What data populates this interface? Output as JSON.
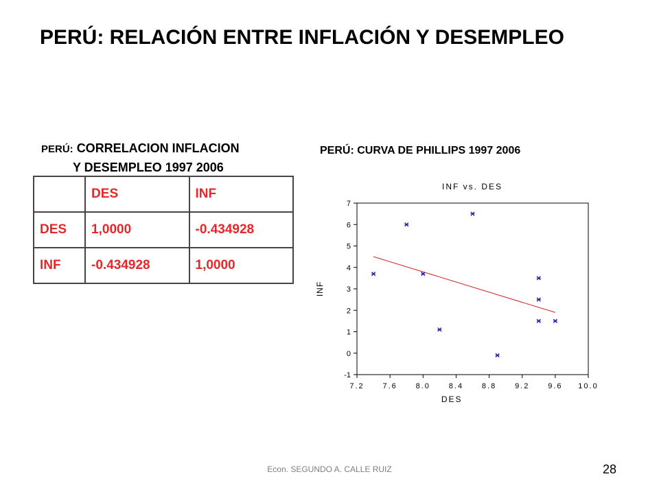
{
  "slide": {
    "title": "PERÚ: RELACIÓN ENTRE INFLACIÓN Y DESEMPLEO",
    "footer": "Econ. SEGUNDO A. CALLE RUIZ",
    "page_number": "28"
  },
  "table": {
    "title_prefix": "PERÚ:",
    "title_line1": "CORRELACION INFLACION",
    "title_line2": "Y DESEMPLEO 1997 2006",
    "header": [
      "",
      "DES",
      "INF"
    ],
    "rows": [
      [
        "DES",
        "1,0000",
        "-0.434928"
      ],
      [
        "INF",
        "-0.434928",
        "1,0000"
      ]
    ],
    "text_color": "#e8262a"
  },
  "chart_data": {
    "type": "scatter",
    "heading": "PERÚ: CURVA DE PHILLIPS 1997 2006",
    "title": "INF vs. DES",
    "xlabel": "DES",
    "ylabel": "INF",
    "xlim": [
      7.2,
      10.0
    ],
    "ylim": [
      -1,
      7
    ],
    "xticks": [
      "7.2",
      "7.6",
      "8.0",
      "8.4",
      "8.8",
      "9.2",
      "9.6",
      "10.0"
    ],
    "yticks": [
      "-1",
      "0",
      "1",
      "2",
      "3",
      "4",
      "5",
      "6",
      "7"
    ],
    "points": [
      {
        "x": 7.4,
        "y": 3.7
      },
      {
        "x": 7.8,
        "y": 6.0
      },
      {
        "x": 8.0,
        "y": 3.7
      },
      {
        "x": 8.2,
        "y": 1.1
      },
      {
        "x": 8.6,
        "y": 6.5
      },
      {
        "x": 8.9,
        "y": -0.1
      },
      {
        "x": 9.4,
        "y": 3.5
      },
      {
        "x": 9.4,
        "y": 2.5
      },
      {
        "x": 9.4,
        "y": 1.5
      },
      {
        "x": 9.6,
        "y": 1.5
      }
    ],
    "fit_line": [
      {
        "x": 7.4,
        "y": 4.5
      },
      {
        "x": 9.6,
        "y": 1.9
      }
    ],
    "point_color": "#1f1fa0",
    "line_color": "#d42020",
    "grid": false
  }
}
